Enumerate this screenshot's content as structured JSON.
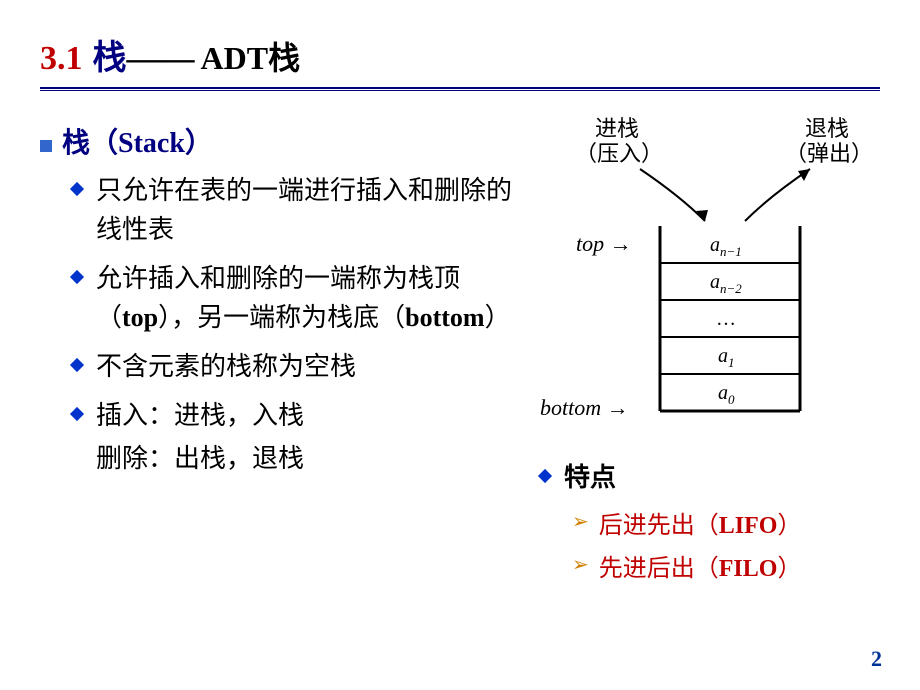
{
  "title": {
    "num": "3.1",
    "main": "栈",
    "dash": "——",
    "sub": "ADT栈"
  },
  "heading": {
    "prefix": "栈（",
    "en": "Stack",
    "suffix": "）"
  },
  "bullets": [
    "只允许在表的一端进行插入和删除的线性表",
    "允许插入和删除的一端称为栈顶（|top|），另一端称为栈底（|bottom|）",
    "不含元素的栈称为空栈",
    "插入：进栈，入栈"
  ],
  "bullet_sub": "删除：出栈，退栈",
  "diagram": {
    "push_l1": "进栈",
    "push_l2": "（压入）",
    "pop_l1": "退栈",
    "pop_l2": "（弹出）",
    "top_label": "top →",
    "bottom_label": "bottom →",
    "cells": [
      "a|n−1",
      "a|n−2",
      "…",
      "a|1",
      "a|0"
    ]
  },
  "features": {
    "label": "特点",
    "items": [
      {
        "zh": "后进先出（",
        "en": "LIFO",
        "suf": "）"
      },
      {
        "zh": "先进后出（",
        "en": "FILO",
        "suf": "）"
      }
    ]
  },
  "page_number": "2",
  "colors": {
    "title_num": "#c00000",
    "title_main": "#000080",
    "bullet_sq": "#3366cc",
    "diamond": "#0033cc",
    "chevron": "#d08000",
    "feature_text": "#c00000",
    "pagenum": "#003399"
  }
}
